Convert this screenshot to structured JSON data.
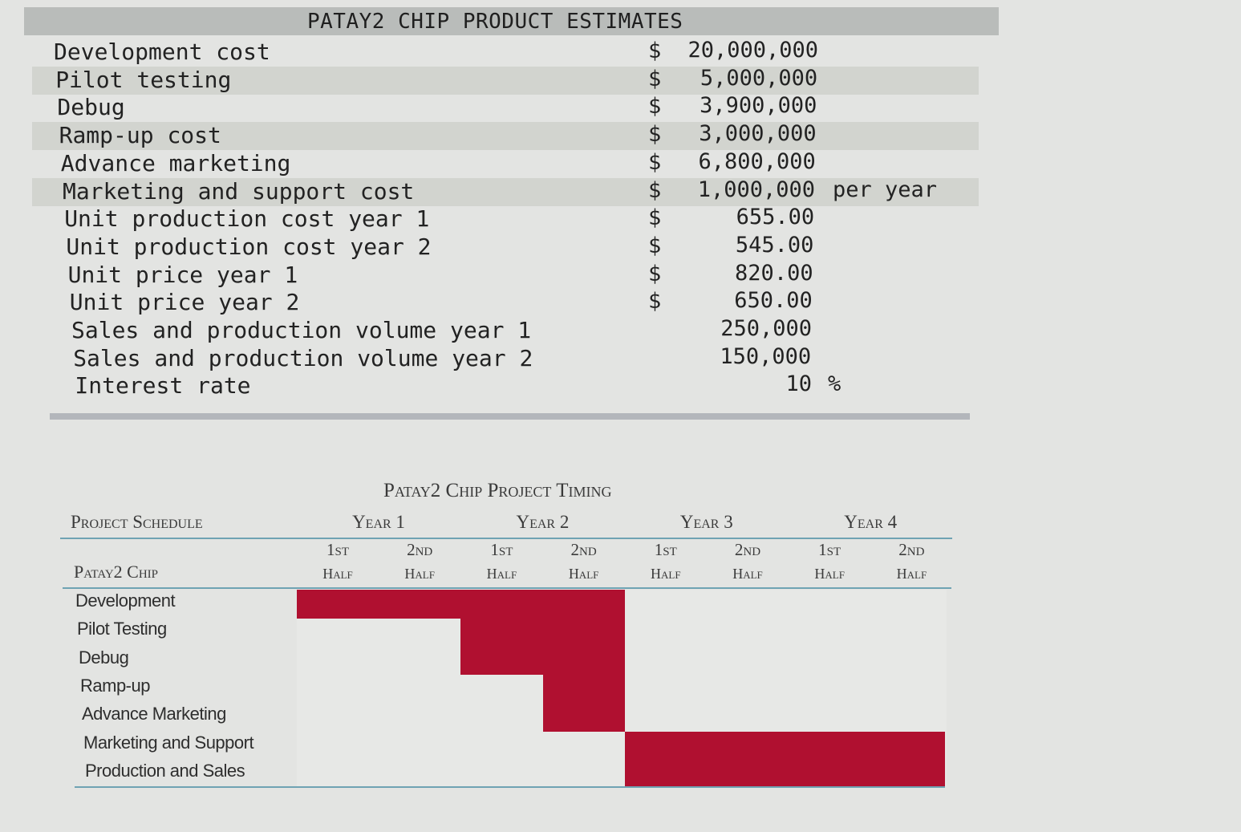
{
  "estimates": {
    "title": "PATAY2 CHIP PRODUCT ESTIMATES",
    "rows": [
      {
        "label": "Development cost",
        "dollar": "$",
        "value": "20,000,000",
        "suffix": ""
      },
      {
        "label": "Pilot testing",
        "dollar": "$",
        "value": "5,000,000",
        "suffix": ""
      },
      {
        "label": "Debug",
        "dollar": "$",
        "value": "3,900,000",
        "suffix": ""
      },
      {
        "label": "Ramp-up cost",
        "dollar": "$",
        "value": "3,000,000",
        "suffix": ""
      },
      {
        "label": "Advance marketing",
        "dollar": "$",
        "value": "6,800,000",
        "suffix": ""
      },
      {
        "label": "Marketing and support cost",
        "dollar": "$",
        "value": "1,000,000",
        "suffix": "per year"
      },
      {
        "label": "Unit production cost year 1",
        "dollar": "$",
        "value": "655.00",
        "suffix": ""
      },
      {
        "label": "Unit production cost year 2",
        "dollar": "$",
        "value": "545.00",
        "suffix": ""
      },
      {
        "label": "Unit price year 1",
        "dollar": "$",
        "value": "820.00",
        "suffix": ""
      },
      {
        "label": "Unit price year 2",
        "dollar": "$",
        "value": "650.00",
        "suffix": ""
      },
      {
        "label": "Sales and production volume year 1",
        "dollar": "",
        "value": "250,000",
        "suffix": ""
      },
      {
        "label": "Sales and production volume year 2",
        "dollar": "",
        "value": "150,000",
        "suffix": ""
      },
      {
        "label": "Interest rate",
        "dollar": "",
        "value": "10",
        "suffix": "%"
      }
    ]
  },
  "schedule": {
    "title": "Patay2 Chip Project Timing",
    "section_label": "Project Schedule",
    "chip_label": "Patay2 Chip",
    "years": [
      "Year 1",
      "Year 2",
      "Year 3",
      "Year 4"
    ],
    "half_top": [
      "1st",
      "2nd"
    ],
    "half_bottom": "Half",
    "tasks": [
      {
        "name": "Development",
        "start_half": 0,
        "end_half": 4
      },
      {
        "name": "Pilot Testing",
        "start_half": 2,
        "end_half": 4
      },
      {
        "name": "Debug",
        "start_half": 2,
        "end_half": 4
      },
      {
        "name": "Ramp-up",
        "start_half": 3,
        "end_half": 4
      },
      {
        "name": "Advance Marketing",
        "start_half": 3,
        "end_half": 4
      },
      {
        "name": "Marketing and Support",
        "start_half": 4,
        "end_half": 8
      },
      {
        "name": "Production and Sales",
        "start_half": 4,
        "end_half": 8
      }
    ],
    "bar_color": "#b01030"
  }
}
